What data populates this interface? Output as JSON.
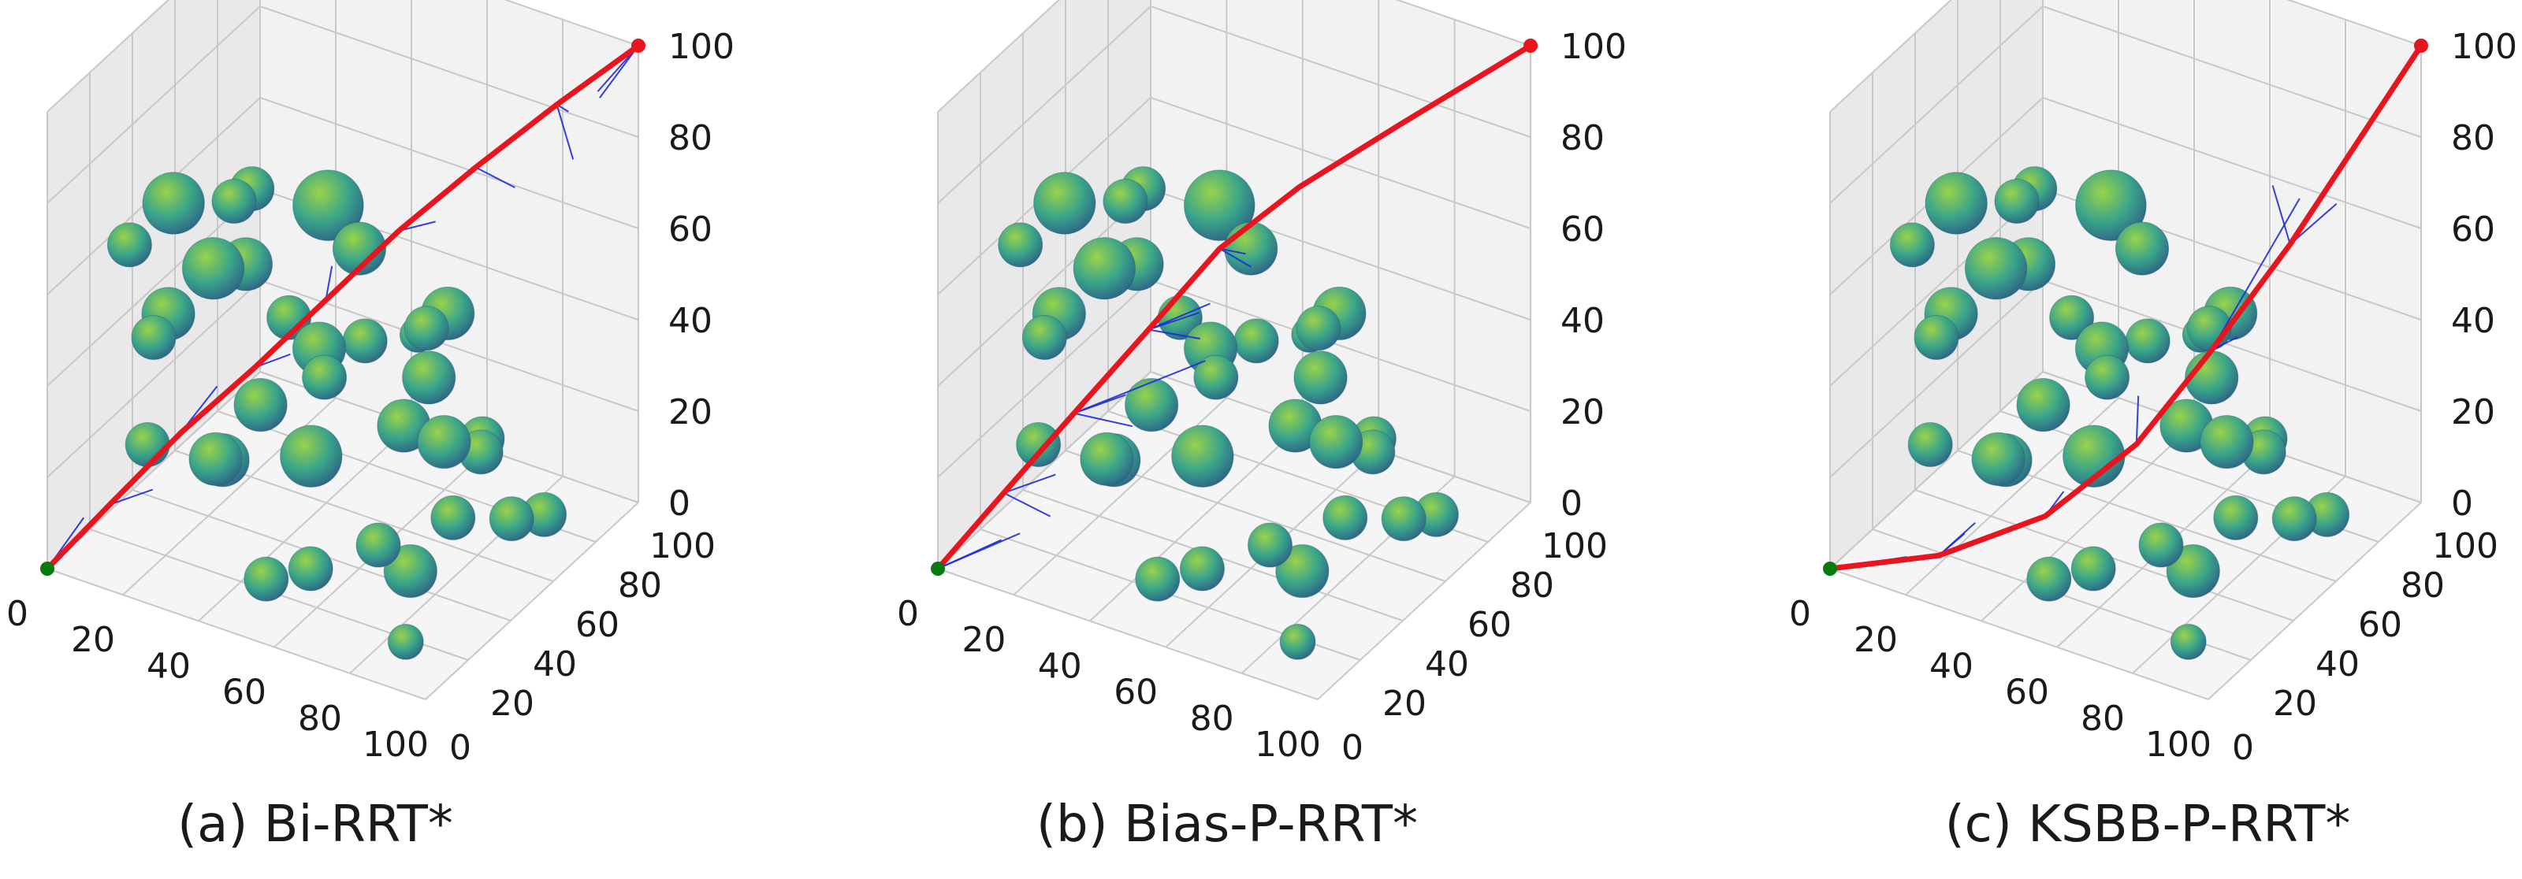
{
  "figure": {
    "panels": [
      {
        "caption": "(a) Bi-RRT*"
      },
      {
        "caption": "(b) Bias-P-RRT*"
      },
      {
        "caption": "(c) KSBB-P-RRT*"
      }
    ]
  },
  "colors": {
    "path": "#e8141e",
    "tree": "#1f2bd8",
    "start": "#0a7a10",
    "goal": "#e8141e",
    "sphere_light": "#9ad24a",
    "sphere_mid": "#3aa58a",
    "sphere_dark": "#2c5f86",
    "pane_back": "#f2f2f2",
    "pane_side": "#e9e9e9",
    "pane_floor": "#f5f5f5",
    "grid": "#c8c8c8"
  },
  "chart_data": [
    {
      "type": "scatter",
      "title": "(a) Bi-RRT*",
      "xlim": [
        0,
        100
      ],
      "ylim": [
        0,
        100
      ],
      "zlim": [
        0,
        100
      ],
      "x_ticks": [
        "0",
        "20",
        "40",
        "60",
        "80",
        "100"
      ],
      "y_ticks": [
        "20",
        "40",
        "60",
        "80",
        "100"
      ],
      "y_origin_tick": "0",
      "z_ticks": [
        "0",
        "20",
        "40",
        "60",
        "80",
        "100"
      ],
      "grid": true,
      "start": [
        0,
        0,
        0
      ],
      "goal": [
        100,
        100,
        100
      ],
      "path": [
        [
          0,
          0,
          0
        ],
        [
          12,
          8,
          14
        ],
        [
          25,
          18,
          29
        ],
        [
          38,
          30,
          42
        ],
        [
          50,
          42,
          55
        ],
        [
          62,
          55,
          68
        ],
        [
          75,
          68,
          80
        ],
        [
          88,
          83,
          91
        ],
        [
          100,
          100,
          100
        ]
      ],
      "tree_branches": [
        [
          [
            0,
            0,
            0
          ],
          [
            4,
            10,
            8
          ]
        ],
        [
          [
            12,
            8,
            14
          ],
          [
            20,
            14,
            17
          ]
        ],
        [
          [
            25,
            18,
            29
          ],
          [
            28,
            30,
            35
          ]
        ],
        [
          [
            38,
            30,
            42
          ],
          [
            44,
            36,
            44
          ]
        ],
        [
          [
            50,
            42,
            55
          ],
          [
            46,
            52,
            57
          ]
        ],
        [
          [
            62,
            55,
            68
          ],
          [
            70,
            58,
            71
          ]
        ],
        [
          [
            75,
            68,
            80
          ],
          [
            82,
            74,
            75
          ]
        ],
        [
          [
            88,
            83,
            91
          ],
          [
            94,
            80,
            82
          ]
        ],
        [
          [
            88,
            83,
            91
          ],
          [
            86,
            92,
            85
          ]
        ],
        [
          [
            100,
            100,
            100
          ],
          [
            92,
            96,
            88
          ]
        ],
        [
          [
            100,
            100,
            100
          ],
          [
            96,
            88,
            94
          ]
        ]
      ],
      "obstacles": [
        [
          30,
          6,
          86,
          7
        ],
        [
          46,
          6,
          91,
          5
        ],
        [
          44,
          18,
          88,
          5
        ],
        [
          15,
          12,
          70,
          5
        ],
        [
          36,
          14,
          70,
          7
        ],
        [
          18,
          18,
          48,
          5
        ],
        [
          14,
          32,
          46,
          6
        ],
        [
          30,
          40,
          58,
          6
        ],
        [
          45,
          52,
          70,
          8
        ],
        [
          60,
          40,
          70,
          6
        ],
        [
          55,
          30,
          51,
          6
        ],
        [
          62,
          20,
          51,
          5
        ],
        [
          72,
          46,
          52,
          4
        ],
        [
          80,
          36,
          60,
          5
        ],
        [
          88,
          30,
          40,
          6
        ],
        [
          96,
          20,
          30,
          5
        ],
        [
          22,
          8,
          30,
          5
        ],
        [
          40,
          8,
          32,
          6
        ],
        [
          34,
          22,
          24,
          6
        ],
        [
          54,
          28,
          28,
          7
        ],
        [
          74,
          24,
          16,
          5
        ],
        [
          78,
          32,
          8,
          6
        ],
        [
          64,
          10,
          14,
          5
        ],
        [
          50,
          14,
          6,
          5
        ],
        [
          88,
          12,
          4,
          4
        ],
        [
          98,
          44,
          20,
          5
        ],
        [
          66,
          62,
          34,
          6
        ],
        [
          48,
          64,
          36,
          5
        ],
        [
          82,
          58,
          24,
          5
        ],
        [
          92,
          70,
          8,
          5
        ],
        [
          38,
          46,
          46,
          5
        ],
        [
          26,
          54,
          20,
          6
        ],
        [
          56,
          68,
          18,
          6
        ],
        [
          70,
          80,
          14,
          5
        ],
        [
          62,
          78,
          40,
          6
        ]
      ]
    },
    {
      "type": "scatter",
      "title": "(b) Bias-P-RRT*",
      "xlim": [
        0,
        100
      ],
      "ylim": [
        0,
        100
      ],
      "zlim": [
        0,
        100
      ],
      "x_ticks": [
        "0",
        "20",
        "40",
        "60",
        "80",
        "100"
      ],
      "y_ticks": [
        "20",
        "40",
        "60",
        "80",
        "100"
      ],
      "y_origin_tick": "0",
      "z_ticks": [
        "0",
        "20",
        "40",
        "60",
        "80",
        "100"
      ],
      "grid": true,
      "start": [
        0,
        0,
        0
      ],
      "goal": [
        100,
        100,
        100
      ],
      "path": [
        [
          0,
          0,
          0
        ],
        [
          14,
          6,
          18
        ],
        [
          28,
          14,
          36
        ],
        [
          42,
          24,
          54
        ],
        [
          54,
          36,
          70
        ],
        [
          66,
          52,
          80
        ],
        [
          82,
          72,
          90
        ],
        [
          100,
          100,
          100
        ]
      ],
      "tree_branches": [
        [
          [
            0,
            0,
            0
          ],
          [
            10,
            12,
            4
          ]
        ],
        [
          [
            0,
            0,
            0
          ],
          [
            16,
            10,
            8
          ]
        ],
        [
          [
            14,
            6,
            18
          ],
          [
            22,
            16,
            20
          ]
        ],
        [
          [
            14,
            6,
            18
          ],
          [
            24,
            10,
            14
          ]
        ],
        [
          [
            28,
            14,
            36
          ],
          [
            36,
            24,
            38
          ]
        ],
        [
          [
            28,
            14,
            36
          ],
          [
            40,
            20,
            34
          ]
        ],
        [
          [
            42,
            24,
            54
          ],
          [
            52,
            30,
            58
          ]
        ],
        [
          [
            42,
            24,
            54
          ],
          [
            50,
            34,
            50
          ]
        ],
        [
          [
            42,
            24,
            54
          ],
          [
            56,
            28,
            62
          ]
        ],
        [
          [
            54,
            36,
            70
          ],
          [
            60,
            40,
            66
          ]
        ],
        [
          [
            54,
            36,
            70
          ],
          [
            62,
            34,
            72
          ]
        ],
        [
          [
            28,
            14,
            36
          ],
          [
            48,
            40,
            42
          ]
        ]
      ],
      "obstacles": [
        [
          30,
          6,
          86,
          7
        ],
        [
          46,
          6,
          91,
          5
        ],
        [
          44,
          18,
          88,
          5
        ],
        [
          15,
          12,
          70,
          5
        ],
        [
          36,
          14,
          70,
          7
        ],
        [
          18,
          18,
          48,
          5
        ],
        [
          14,
          32,
          46,
          6
        ],
        [
          30,
          40,
          58,
          6
        ],
        [
          45,
          52,
          70,
          8
        ],
        [
          60,
          40,
          70,
          6
        ],
        [
          55,
          30,
          51,
          6
        ],
        [
          62,
          20,
          51,
          5
        ],
        [
          72,
          46,
          52,
          4
        ],
        [
          80,
          36,
          60,
          5
        ],
        [
          88,
          30,
          40,
          6
        ],
        [
          96,
          20,
          30,
          5
        ],
        [
          22,
          8,
          30,
          5
        ],
        [
          40,
          8,
          32,
          6
        ],
        [
          34,
          22,
          24,
          6
        ],
        [
          54,
          28,
          28,
          7
        ],
        [
          74,
          24,
          16,
          5
        ],
        [
          78,
          32,
          8,
          6
        ],
        [
          64,
          10,
          14,
          5
        ],
        [
          50,
          14,
          6,
          5
        ],
        [
          88,
          12,
          4,
          4
        ],
        [
          98,
          44,
          20,
          5
        ],
        [
          66,
          62,
          34,
          6
        ],
        [
          48,
          64,
          36,
          5
        ],
        [
          82,
          58,
          24,
          5
        ],
        [
          92,
          70,
          8,
          5
        ],
        [
          38,
          46,
          46,
          5
        ],
        [
          26,
          54,
          20,
          6
        ],
        [
          56,
          68,
          18,
          6
        ],
        [
          70,
          80,
          14,
          5
        ],
        [
          62,
          78,
          40,
          6
        ]
      ]
    },
    {
      "type": "scatter",
      "title": "(c) KSBB-P-RRT*",
      "xlim": [
        0,
        100
      ],
      "ylim": [
        0,
        100
      ],
      "zlim": [
        0,
        100
      ],
      "x_ticks": [
        "0",
        "20",
        "40",
        "60",
        "80",
        "100"
      ],
      "y_ticks": [
        "20",
        "40",
        "60",
        "80",
        "100"
      ],
      "y_origin_tick": "0",
      "z_ticks": [
        "0",
        "20",
        "40",
        "60",
        "80",
        "100"
      ],
      "grid": true,
      "start": [
        0,
        0,
        0
      ],
      "goal": [
        100,
        100,
        100
      ],
      "path": [
        [
          0,
          0,
          0
        ],
        [
          22,
          12,
          4
        ],
        [
          40,
          30,
          10
        ],
        [
          54,
          48,
          22
        ],
        [
          66,
          62,
          40
        ],
        [
          80,
          74,
          62
        ],
        [
          100,
          100,
          100
        ]
      ],
      "tree_branches": [
        [
          [
            0,
            0,
            0
          ],
          [
            18,
            4,
            6
          ]
        ],
        [
          [
            22,
            12,
            4
          ],
          [
            30,
            10,
            12
          ]
        ],
        [
          [
            22,
            12,
            4
          ],
          [
            26,
            22,
            8
          ]
        ],
        [
          [
            40,
            30,
            10
          ],
          [
            46,
            28,
            18
          ]
        ],
        [
          [
            54,
            48,
            22
          ],
          [
            50,
            56,
            28
          ]
        ],
        [
          [
            66,
            62,
            40
          ],
          [
            74,
            60,
            46
          ]
        ],
        [
          [
            80,
            74,
            62
          ],
          [
            72,
            80,
            70
          ]
        ],
        [
          [
            80,
            74,
            62
          ],
          [
            90,
            78,
            72
          ]
        ],
        [
          [
            66,
            62,
            40
          ],
          [
            78,
            82,
            68
          ]
        ]
      ],
      "obstacles": [
        [
          30,
          6,
          86,
          7
        ],
        [
          46,
          6,
          91,
          5
        ],
        [
          44,
          18,
          88,
          5
        ],
        [
          15,
          12,
          70,
          5
        ],
        [
          36,
          14,
          70,
          7
        ],
        [
          18,
          18,
          48,
          5
        ],
        [
          14,
          32,
          46,
          6
        ],
        [
          30,
          40,
          58,
          6
        ],
        [
          45,
          52,
          70,
          8
        ],
        [
          60,
          40,
          70,
          6
        ],
        [
          55,
          30,
          51,
          6
        ],
        [
          62,
          20,
          51,
          5
        ],
        [
          72,
          46,
          52,
          4
        ],
        [
          80,
          36,
          60,
          5
        ],
        [
          88,
          30,
          40,
          6
        ],
        [
          96,
          20,
          30,
          5
        ],
        [
          22,
          8,
          30,
          5
        ],
        [
          40,
          8,
          32,
          6
        ],
        [
          34,
          22,
          24,
          6
        ],
        [
          54,
          28,
          28,
          7
        ],
        [
          74,
          24,
          16,
          5
        ],
        [
          78,
          32,
          8,
          6
        ],
        [
          64,
          10,
          14,
          5
        ],
        [
          50,
          14,
          6,
          5
        ],
        [
          88,
          12,
          4,
          4
        ],
        [
          98,
          44,
          20,
          5
        ],
        [
          66,
          62,
          34,
          6
        ],
        [
          48,
          64,
          36,
          5
        ],
        [
          82,
          58,
          24,
          5
        ],
        [
          92,
          70,
          8,
          5
        ],
        [
          38,
          46,
          46,
          5
        ],
        [
          26,
          54,
          20,
          6
        ],
        [
          56,
          68,
          18,
          6
        ],
        [
          70,
          80,
          14,
          5
        ],
        [
          62,
          78,
          40,
          6
        ]
      ]
    }
  ]
}
